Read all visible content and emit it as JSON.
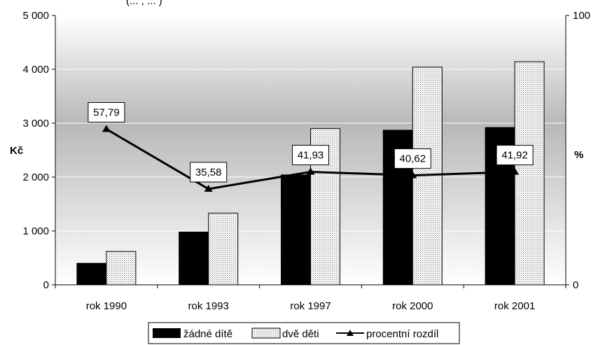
{
  "chart_data": {
    "type": "bar",
    "title": "",
    "categories": [
      "rok 1990",
      "rok 1993",
      "rok 1997",
      "rok 2000",
      "rok 2001"
    ],
    "series": [
      {
        "name": "žádné dítě",
        "type": "bar",
        "axis": "left",
        "values": [
          400,
          980,
          2040,
          2870,
          2920
        ],
        "color": "#000000"
      },
      {
        "name": "dvě děti",
        "type": "bar",
        "axis": "left",
        "pattern": "dotted",
        "values": [
          620,
          1330,
          2900,
          4040,
          4140
        ],
        "color": "#ffffff"
      },
      {
        "name": "procentní rozdíl",
        "type": "line",
        "marker": "triangle",
        "axis": "right",
        "values": [
          57.79,
          35.58,
          41.93,
          40.62,
          41.92
        ],
        "value_labels": [
          "57,79",
          "35,58",
          "41,93",
          "40,62",
          "41,92"
        ],
        "color": "#000000"
      }
    ],
    "ylabel": "Kč",
    "y2label": "%",
    "ylim": [
      0,
      5000
    ],
    "y2lim": [
      0,
      100
    ],
    "yticks": [
      0,
      1000,
      2000,
      3000,
      4000,
      5000
    ],
    "ytick_labels": [
      "0",
      "1 000",
      "2 000",
      "3 000",
      "4 000",
      "5 000"
    ],
    "y2ticks": [
      0,
      100
    ],
    "y2tick_labels": [
      "0",
      "100"
    ],
    "grid": true,
    "legend": "bottom",
    "top_caption_fragment": "(... , ... )"
  }
}
